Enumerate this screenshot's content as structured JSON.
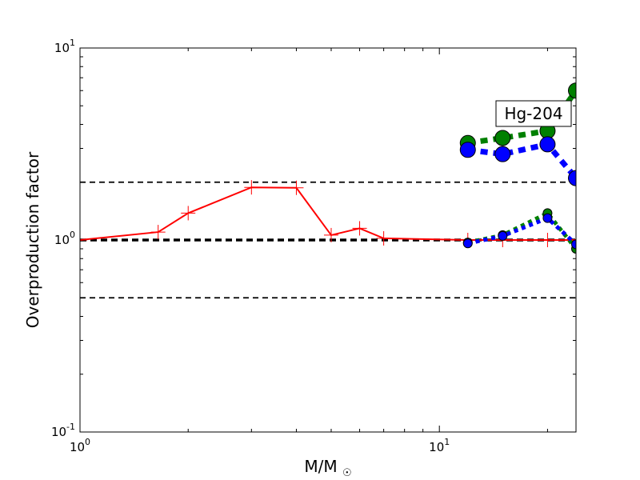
{
  "chart_data": {
    "type": "line",
    "xlabel": "M/M☉",
    "ylabel": "Overproduction factor",
    "xscale": "log",
    "yscale": "log",
    "xlim": [
      1,
      24
    ],
    "ylim": [
      0.1,
      10
    ],
    "x_ticks": [
      {
        "value": 1,
        "base": "10",
        "exp": "0"
      },
      {
        "value": 10,
        "base": "10",
        "exp": "1"
      }
    ],
    "y_ticks": [
      {
        "value": 0.1,
        "base": "10",
        "exp": "-1"
      },
      {
        "value": 1,
        "base": "10",
        "exp": "0"
      },
      {
        "value": 10,
        "base": "10",
        "exp": "1"
      }
    ],
    "annotation": "Hg-204",
    "reference_lines": [
      {
        "y": 2,
        "style": "dashed-thin"
      },
      {
        "y": 1,
        "style": "dashed-thick"
      },
      {
        "y": 0.5,
        "style": "dashed-thin"
      }
    ],
    "series": [
      {
        "color": "#ff0000",
        "style": "solid",
        "marker": "plus",
        "x": [
          1.0,
          1.65,
          2.0,
          3.0,
          4.0,
          5.0,
          6.0,
          7.0,
          12.0,
          15.0,
          20.0,
          24.0
        ],
        "y": [
          1.0,
          1.1,
          1.38,
          1.88,
          1.87,
          1.06,
          1.15,
          1.02,
          1.0,
          1.0,
          1.0,
          1.0
        ]
      },
      {
        "color": "#008000",
        "style": "dotted-thick",
        "marker": "circle-large",
        "x": [
          12.0,
          15.0,
          20.0,
          24.0
        ],
        "y": [
          3.2,
          3.4,
          3.7,
          6.0
        ]
      },
      {
        "color": "#0000ff",
        "style": "dotted-thick",
        "marker": "circle-large",
        "x": [
          12.0,
          15.0,
          20.0,
          24.0
        ],
        "y": [
          2.95,
          2.8,
          3.15,
          2.1
        ]
      },
      {
        "color": "#008000",
        "style": "dotted",
        "marker": "circle-small",
        "x": [
          12.0,
          15.0,
          20.0,
          24.0
        ],
        "y": [
          0.97,
          1.06,
          1.38,
          0.9
        ]
      },
      {
        "color": "#0000ff",
        "style": "dotted",
        "marker": "circle-small",
        "x": [
          12.0,
          15.0,
          20.0,
          24.0
        ],
        "y": [
          0.96,
          1.05,
          1.3,
          0.95
        ]
      }
    ]
  }
}
